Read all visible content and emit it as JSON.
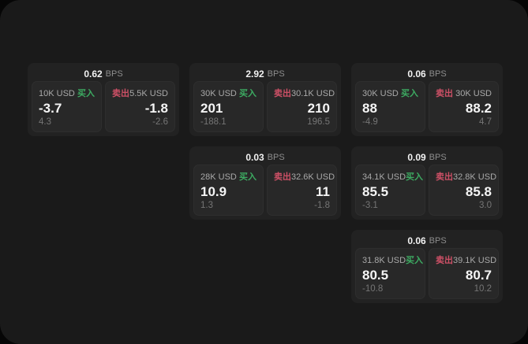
{
  "labels": {
    "bps_unit": "BPS",
    "buy": "买入",
    "sell": "卖出"
  },
  "colors": {
    "panel_bg": "#1a1a1a",
    "card_bg": "#222222",
    "tile_bg": "#282828",
    "buy_green": "#3dab62",
    "sell_red": "#cd5066",
    "value_text": "#f5f5f5",
    "muted_text": "#757575"
  },
  "cards": [
    {
      "bps": "0.62",
      "buy": {
        "amount": "10K USD",
        "price": "-3.7",
        "delta": "4.3"
      },
      "sell": {
        "amount": "5.5K USD",
        "price": "-1.8",
        "delta": "-2.6"
      }
    },
    {
      "bps": "2.92",
      "buy": {
        "amount": "30K USD",
        "price": "201",
        "delta": "-188.1"
      },
      "sell": {
        "amount": "30.1K USD",
        "price": "210",
        "delta": "196.5"
      }
    },
    {
      "bps": "0.06",
      "buy": {
        "amount": "30K USD",
        "price": "88",
        "delta": "-4.9"
      },
      "sell": {
        "amount": "30K USD",
        "price": "88.2",
        "delta": "4.7"
      }
    },
    {
      "bps": "0.03",
      "buy": {
        "amount": "28K USD",
        "price": "10.9",
        "delta": "1.3"
      },
      "sell": {
        "amount": "32.6K USD",
        "price": "11",
        "delta": "-1.8"
      }
    },
    {
      "bps": "0.09",
      "buy": {
        "amount": "34.1K USD",
        "price": "85.5",
        "delta": "-3.1"
      },
      "sell": {
        "amount": "32.8K USD",
        "price": "85.8",
        "delta": "3.0"
      }
    },
    {
      "bps": "0.06",
      "buy": {
        "amount": "31.8K USD",
        "price": "80.5",
        "delta": "-10.8"
      },
      "sell": {
        "amount": "39.1K USD",
        "price": "80.7",
        "delta": "10.2"
      }
    }
  ]
}
